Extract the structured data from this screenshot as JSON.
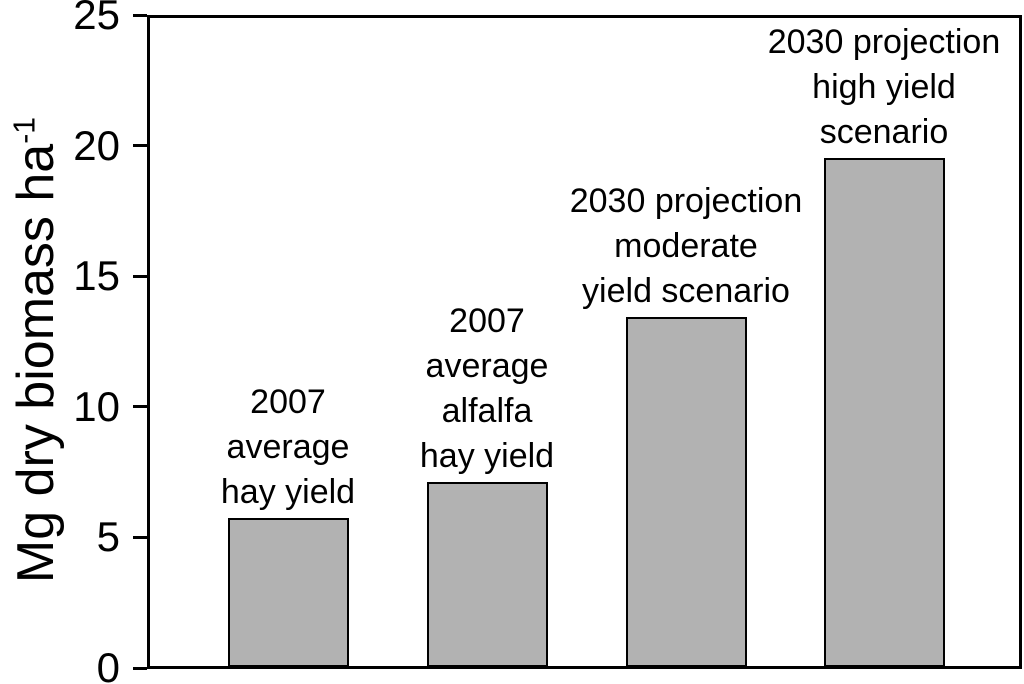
{
  "chart_data": {
    "type": "bar",
    "title": "",
    "ylabel_main": "Mg dry biomass ha",
    "ylabel_superscript": "-1",
    "xlabel": "",
    "ylim": [
      0,
      25
    ],
    "yticks": [
      0,
      5,
      10,
      15,
      20,
      25
    ],
    "grid": false,
    "legend": null,
    "categories": [
      "2007 average hay yield",
      "2007 average alfalfa hay yield",
      "2030 projection moderate yield scenario",
      "2030 projection high yield scenario"
    ],
    "bar_label_lines": [
      [
        "2007",
        "average",
        "hay yield"
      ],
      [
        "2007",
        "average",
        "alfalfa",
        "hay yield"
      ],
      [
        "2030 projection",
        "moderate",
        "yield scenario"
      ],
      [
        "2030 projection",
        "high yield",
        "scenario"
      ]
    ],
    "values": [
      5.7,
      7.1,
      13.4,
      19.5
    ],
    "colors": {
      "bar_fill": "#b2b2b2",
      "bar_stroke": "#000000",
      "axis": "#000000",
      "text": "#000000",
      "background": "#ffffff"
    }
  }
}
